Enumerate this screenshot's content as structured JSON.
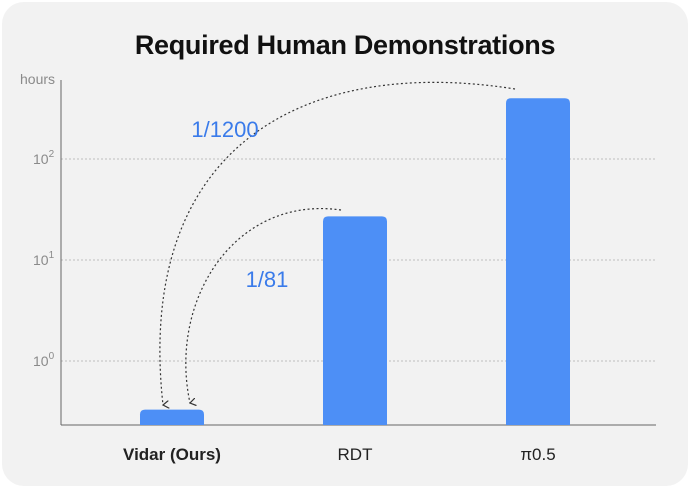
{
  "chart_data": {
    "type": "bar",
    "title": "Required Human Demonstrations",
    "ylabel": "hours",
    "yscale": "log",
    "ylim": [
      0.3,
      1000
    ],
    "yticks": [
      1,
      10,
      100
    ],
    "ytick_labels": [
      {
        "base": "10",
        "exp": "0"
      },
      {
        "base": "10",
        "exp": "1"
      },
      {
        "base": "10",
        "exp": "2"
      }
    ],
    "grid": true,
    "categories": [
      "Vidar (Ours)",
      "RDT",
      "π0.5"
    ],
    "values": [
      0.33,
      27,
      400
    ],
    "bar_color": "#4d8ff6",
    "annotations": [
      {
        "text": "1/1200",
        "from": "π0.5",
        "to": "Vidar (Ours)"
      },
      {
        "text": "1/81",
        "from": "RDT",
        "to": "Vidar (Ours)"
      }
    ]
  }
}
